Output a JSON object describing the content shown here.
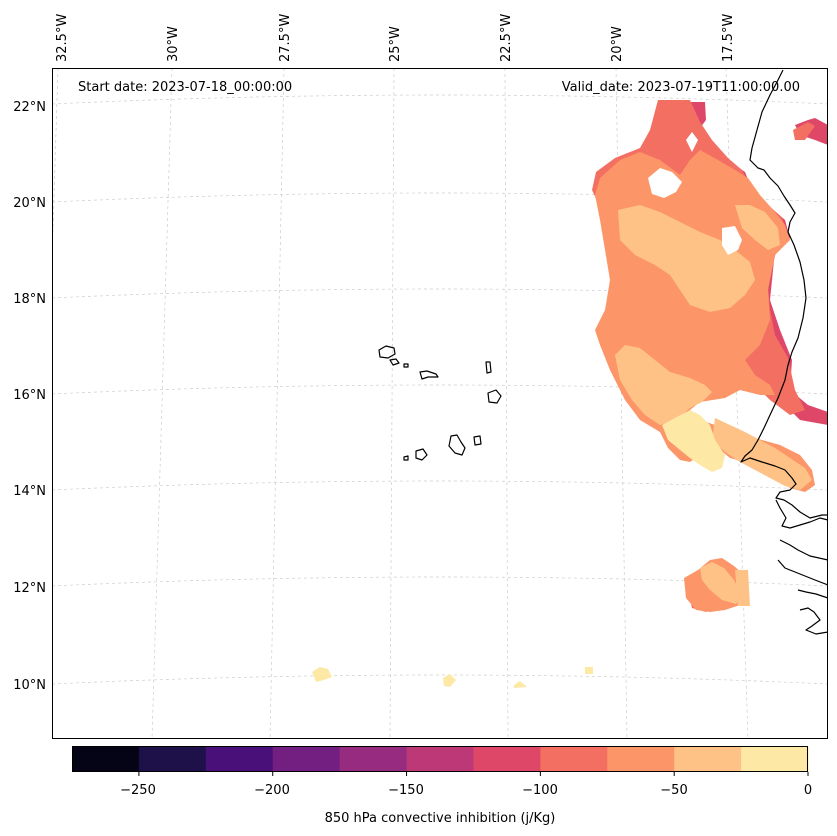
{
  "header": {
    "start_date": "Start date: 2023-07-18_00:00:00",
    "valid_date": "Valid_date: 2023-07-19T11:00:00.00"
  },
  "longitude_labels": [
    "32.5°W",
    "30°W",
    "27.5°W",
    "25°W",
    "22.5°W",
    "20°W",
    "17.5°W"
  ],
  "latitude_labels": [
    "22°N",
    "20°N",
    "18°N",
    "16°N",
    "14°N",
    "12°N",
    "10°N"
  ],
  "colorbar": {
    "title": "850 hPa convective inhibition (j/Kg)",
    "tick_labels": [
      "−250",
      "−200",
      "−150",
      "−100",
      "−50",
      "0"
    ],
    "bins": [
      {
        "range": [
          -275,
          -250
        ],
        "color": "#050416"
      },
      {
        "range": [
          -250,
          -225
        ],
        "color": "#1e1149"
      },
      {
        "range": [
          -225,
          -200
        ],
        "color": "#4a1079"
      },
      {
        "range": [
          -200,
          -175
        ],
        "color": "#721f81"
      },
      {
        "range": [
          -175,
          -150
        ],
        "color": "#962b7f"
      },
      {
        "range": [
          -150,
          -125
        ],
        "color": "#bc3877"
      },
      {
        "range": [
          -125,
          -100
        ],
        "color": "#df4769"
      },
      {
        "range": [
          -100,
          -75
        ],
        "color": "#f36f62"
      },
      {
        "range": [
          -75,
          -50
        ],
        "color": "#fc9568"
      },
      {
        "range": [
          -50,
          -25
        ],
        "color": "#fec287"
      },
      {
        "range": [
          -25,
          0
        ],
        "color": "#fde8a6"
      }
    ]
  }
}
